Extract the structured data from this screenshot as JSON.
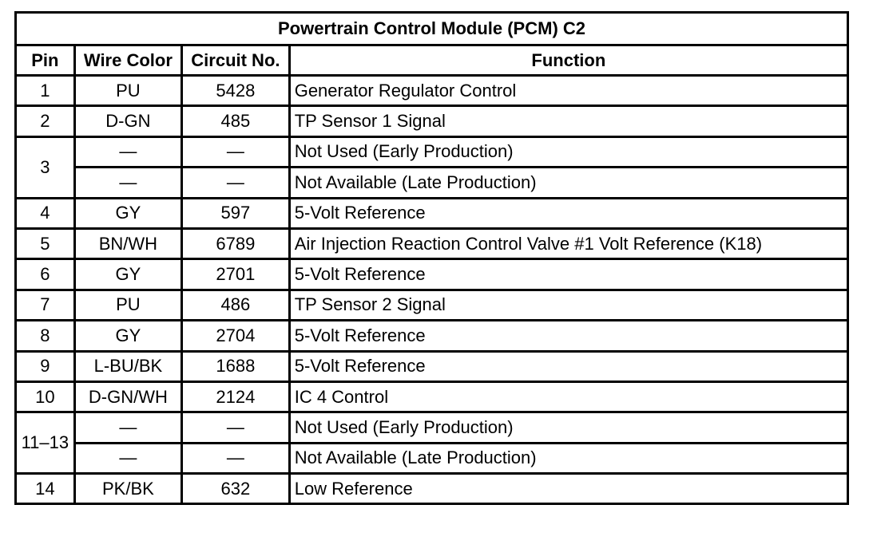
{
  "table": {
    "title": "Powertrain Control Module (PCM) C2",
    "headers": [
      "Pin",
      "Wire Color",
      "Circuit No.",
      "Function"
    ],
    "groups": [
      {
        "pin": "1",
        "entries": [
          [
            "PU",
            "5428",
            "Generator Regulator Control"
          ]
        ]
      },
      {
        "pin": "2",
        "entries": [
          [
            "D-GN",
            "485",
            "TP Sensor 1 Signal"
          ]
        ]
      },
      {
        "pin": "3",
        "entries": [
          [
            "—",
            "—",
            "Not Used (Early Production)"
          ],
          [
            "—",
            "—",
            "Not Available (Late Production)"
          ]
        ]
      },
      {
        "pin": "4",
        "entries": [
          [
            "GY",
            "597",
            "5-Volt Reference"
          ]
        ]
      },
      {
        "pin": "5",
        "entries": [
          [
            "BN/WH",
            "6789",
            "Air Injection Reaction Control Valve #1 Volt Reference (K18)"
          ]
        ]
      },
      {
        "pin": "6",
        "entries": [
          [
            "GY",
            "2701",
            "5-Volt Reference"
          ]
        ]
      },
      {
        "pin": "7",
        "entries": [
          [
            "PU",
            "486",
            "TP Sensor 2 Signal"
          ]
        ]
      },
      {
        "pin": "8",
        "entries": [
          [
            "GY",
            "2704",
            "5-Volt Reference"
          ]
        ]
      },
      {
        "pin": "9",
        "entries": [
          [
            "L-BU/BK",
            "1688",
            "5-Volt Reference"
          ]
        ]
      },
      {
        "pin": "10",
        "entries": [
          [
            "D-GN/WH",
            "2124",
            "IC 4 Control"
          ]
        ]
      },
      {
        "pin": "11–13",
        "entries": [
          [
            "—",
            "—",
            "Not Used (Early Production)"
          ],
          [
            "—",
            "—",
            "Not Available (Late Production)"
          ]
        ]
      },
      {
        "pin": "14",
        "entries": [
          [
            "PK/BK",
            "632",
            "Low Reference"
          ]
        ]
      }
    ]
  }
}
